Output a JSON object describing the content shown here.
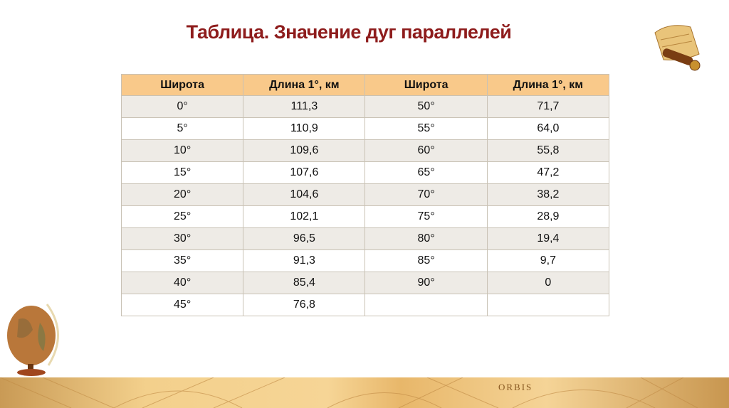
{
  "title": "Таблица. Значение дуг параллелей",
  "table": {
    "headers": [
      "Широта",
      "Длина 1°, км",
      "Широта",
      "Длина 1°, км"
    ],
    "rows": [
      [
        "0°",
        "111,3",
        "50°",
        "71,7"
      ],
      [
        "5°",
        "110,9",
        "55°",
        "64,0"
      ],
      [
        "10°",
        "109,6",
        "60°",
        "55,8"
      ],
      [
        "15°",
        "107,6",
        "65°",
        "47,2"
      ],
      [
        "20°",
        "104,6",
        "70°",
        "38,2"
      ],
      [
        "25°",
        "102,1",
        "75°",
        "28,9"
      ],
      [
        "30°",
        "96,5",
        "80°",
        "19,4"
      ],
      [
        "35°",
        "91,3",
        "85°",
        "9,7"
      ],
      [
        "40°",
        "85,4",
        "90°",
        "0"
      ],
      [
        "45°",
        "76,8",
        "",
        ""
      ]
    ]
  },
  "decor": {
    "map_text": "ORBIS"
  },
  "colors": {
    "title": "#8e1c1c",
    "header_bg": "#f9c98a",
    "odd_row_bg": "#eeebe6"
  }
}
